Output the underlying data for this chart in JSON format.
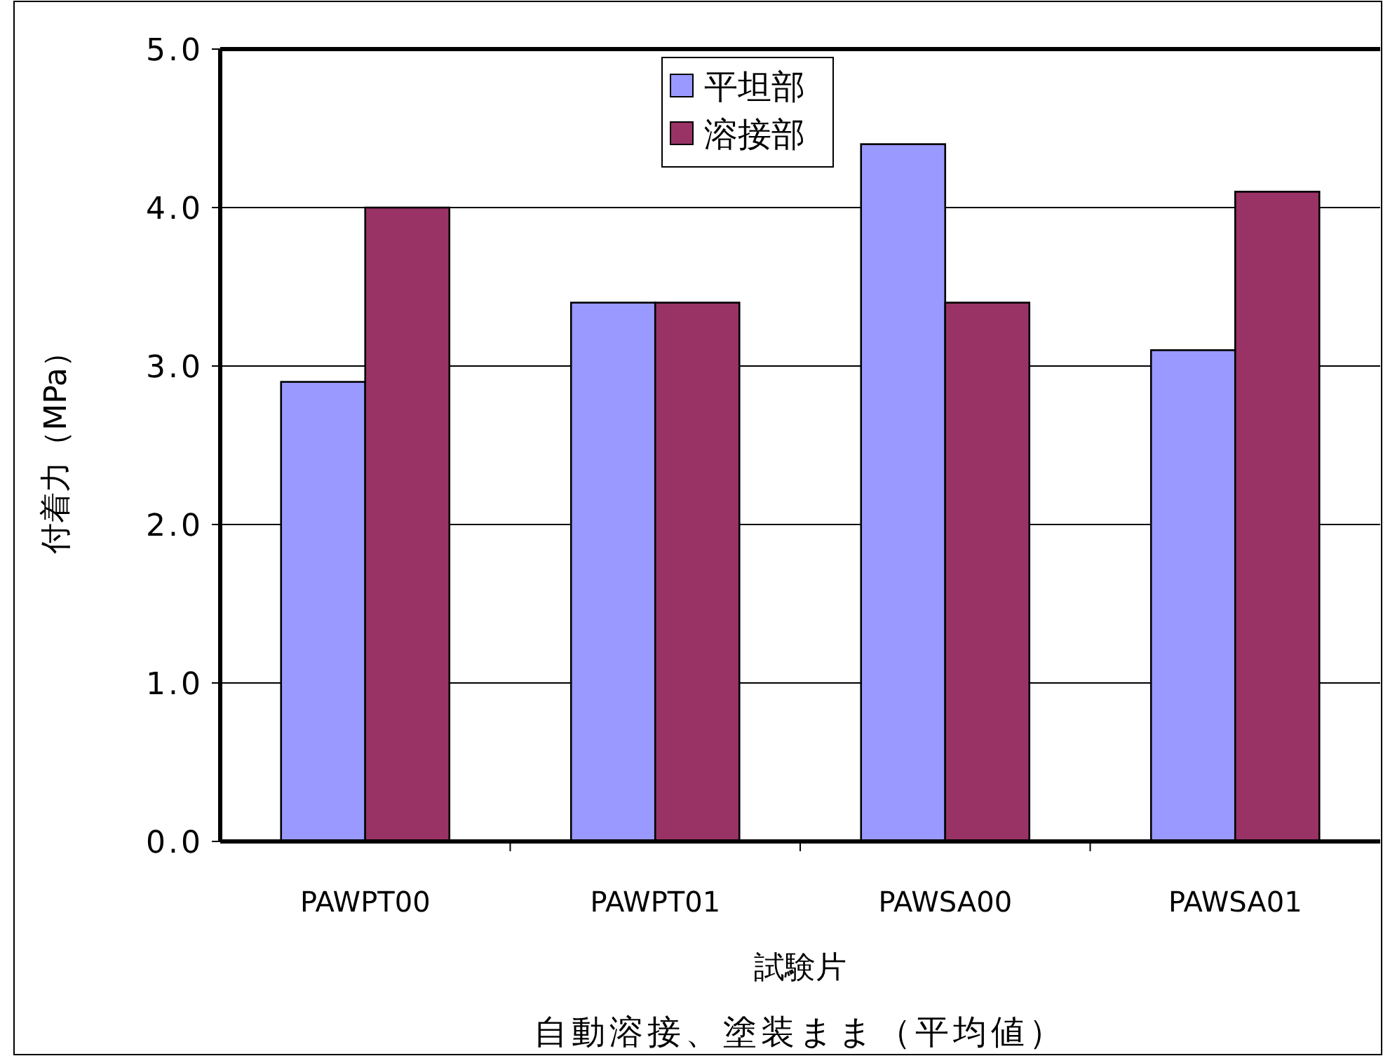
{
  "chart_data": {
    "type": "bar",
    "title": "自動溶接、塗装まま（平均値）",
    "xlabel": "試験片",
    "ylabel": "付着力（MPa）",
    "categories": [
      "PAWPT00",
      "PAWPT01",
      "PAWSA00",
      "PAWSA01"
    ],
    "series": [
      {
        "name": "平坦部",
        "color": "#9999ff",
        "values": [
          2.9,
          3.4,
          4.4,
          3.1
        ]
      },
      {
        "name": "溶接部",
        "color": "#993366",
        "values": [
          4.0,
          3.4,
          3.4,
          4.1
        ]
      }
    ],
    "ylim": [
      0,
      5
    ],
    "yticks": [
      {
        "value": 0,
        "label": "0.0"
      },
      {
        "value": 1,
        "label": "1.0"
      },
      {
        "value": 2,
        "label": "2.0"
      },
      {
        "value": 3,
        "label": "3.0"
      },
      {
        "value": 4,
        "label": "4.0"
      },
      {
        "value": 5,
        "label": "5.0"
      }
    ],
    "grid": "y",
    "legend": "top"
  }
}
